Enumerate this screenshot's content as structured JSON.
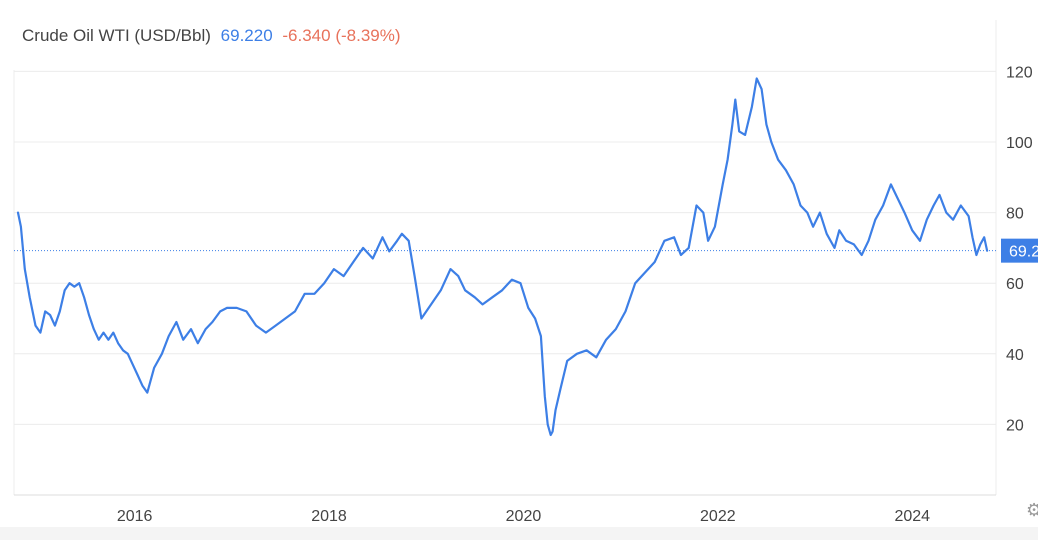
{
  "header": {
    "name": "Crude Oil WTI (USD/Bbl)",
    "price": "69.220",
    "change": "-6.340 (-8.39%)"
  },
  "colors": {
    "line": "#3d7fe6",
    "price": "#3d7fe6",
    "change": "#e8725b",
    "grid": "#ececec",
    "text": "#444444",
    "badge": "#3d7fe6"
  },
  "icons": {
    "settings": "gear-icon"
  },
  "chart_data": {
    "type": "line",
    "title": "Crude Oil WTI (USD/Bbl)",
    "xlabel": "",
    "ylabel": "",
    "xlim": [
      2014.8,
      2024.8
    ],
    "ylim": [
      0,
      125
    ],
    "x_ticks": [
      2016,
      2018,
      2020,
      2022,
      2024
    ],
    "x_tick_labels": [
      "2016",
      "2018",
      "2020",
      "2022",
      "2024"
    ],
    "y_ticks": [
      20,
      40,
      60,
      80,
      100,
      120
    ],
    "y_tick_labels": [
      "20",
      "40",
      "60",
      "80",
      "100",
      "120"
    ],
    "y_axis_position": "right",
    "grid": true,
    "last_value": 69.22,
    "last_value_label": "69.2",
    "series": [
      {
        "x": [
          2014.8,
          2014.83,
          2014.87,
          2014.92,
          2014.98,
          2015.03,
          2015.08,
          2015.13,
          2015.18,
          2015.23,
          2015.28,
          2015.33,
          2015.38,
          2015.43,
          2015.48,
          2015.53,
          2015.58,
          2015.63,
          2015.68,
          2015.73,
          2015.78,
          2015.83,
          2015.88,
          2015.93,
          2015.98,
          2016.03,
          2016.08,
          2016.13,
          2016.2,
          2016.28,
          2016.35,
          2016.43,
          2016.5,
          2016.58,
          2016.65,
          2016.73,
          2016.8,
          2016.88,
          2016.95,
          2017.05,
          2017.15,
          2017.25,
          2017.35,
          2017.45,
          2017.55,
          2017.65,
          2017.75,
          2017.85,
          2017.95,
          2018.05,
          2018.15,
          2018.25,
          2018.35,
          2018.45,
          2018.55,
          2018.62,
          2018.7,
          2018.75,
          2018.82,
          2018.88,
          2018.95,
          2019.05,
          2019.15,
          2019.25,
          2019.33,
          2019.4,
          2019.5,
          2019.58,
          2019.68,
          2019.78,
          2019.88,
          2019.97,
          2020.05,
          2020.12,
          2020.18,
          2020.22,
          2020.25,
          2020.28,
          2020.3,
          2020.33,
          2020.38,
          2020.45,
          2020.55,
          2020.65,
          2020.75,
          2020.85,
          2020.95,
          2021.05,
          2021.15,
          2021.25,
          2021.35,
          2021.45,
          2021.55,
          2021.62,
          2021.7,
          2021.78,
          2021.85,
          2021.9,
          2021.97,
          2022.05,
          2022.1,
          2022.15,
          2022.18,
          2022.22,
          2022.28,
          2022.35,
          2022.4,
          2022.45,
          2022.5,
          2022.55,
          2022.62,
          2022.7,
          2022.78,
          2022.85,
          2022.92,
          2022.98,
          2023.05,
          2023.12,
          2023.2,
          2023.25,
          2023.32,
          2023.4,
          2023.48,
          2023.55,
          2023.62,
          2023.7,
          2023.78,
          2023.85,
          2023.92,
          2024.0,
          2024.08,
          2024.15,
          2024.22,
          2024.28,
          2024.35,
          2024.42,
          2024.5,
          2024.58,
          2024.62,
          2024.66,
          2024.7,
          2024.74,
          2024.77
        ],
        "y": [
          80,
          76,
          64,
          56,
          48,
          46,
          52,
          51,
          48,
          52,
          58,
          60,
          59,
          60,
          56,
          51,
          47,
          44,
          46,
          44,
          46,
          43,
          41,
          40,
          37,
          34,
          31,
          29,
          36,
          40,
          45,
          49,
          44,
          47,
          43,
          47,
          49,
          52,
          53,
          53,
          52,
          48,
          46,
          48,
          50,
          52,
          57,
          57,
          60,
          64,
          62,
          66,
          70,
          67,
          73,
          69,
          72,
          74,
          72,
          62,
          50,
          54,
          58,
          64,
          62,
          58,
          56,
          54,
          56,
          58,
          61,
          60,
          53,
          50,
          45,
          28,
          20,
          17,
          18,
          24,
          30,
          38,
          40,
          41,
          39,
          44,
          47,
          52,
          60,
          63,
          66,
          72,
          73,
          68,
          70,
          82,
          80,
          72,
          76,
          88,
          95,
          105,
          112,
          103,
          102,
          110,
          118,
          115,
          105,
          100,
          95,
          92,
          88,
          82,
          80,
          76,
          80,
          74,
          70,
          75,
          72,
          71,
          68,
          72,
          78,
          82,
          88,
          84,
          80,
          75,
          72,
          78,
          82,
          85,
          80,
          78,
          82,
          79,
          73,
          68,
          71,
          73,
          69.22
        ]
      }
    ]
  }
}
